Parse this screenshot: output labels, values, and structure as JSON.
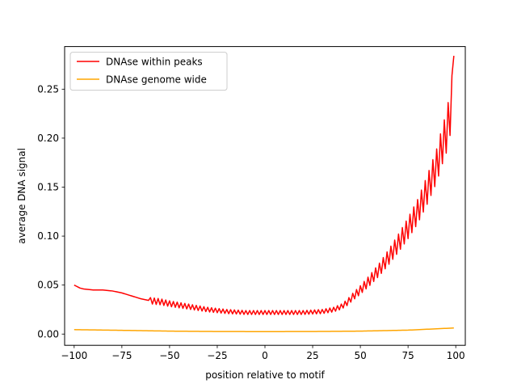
{
  "chart_data": {
    "type": "line",
    "title": "",
    "xlabel": "position relative to motif",
    "ylabel": "average DNA signal",
    "xlim": [
      -105,
      105
    ],
    "ylim": [
      -0.0115,
      0.2935
    ],
    "xticks": [
      -100,
      -75,
      -50,
      -25,
      0,
      25,
      50,
      75,
      100
    ],
    "yticks": [
      0.0,
      0.05,
      0.1,
      0.15,
      0.2,
      0.25
    ],
    "xtick_labels": [
      "−100",
      "−75",
      "−50",
      "−25",
      "0",
      "25",
      "50",
      "75",
      "100"
    ],
    "ytick_labels": [
      "0.00",
      "0.05",
      "0.10",
      "0.15",
      "0.20",
      "0.25"
    ],
    "grid": false,
    "legend_position": "top-left",
    "x_range": [
      -100,
      99
    ],
    "series": [
      {
        "name": "DNAse within peaks",
        "color": "#ff0000",
        "anchors": [
          [
            -100,
            0.05
          ],
          [
            -97,
            0.047
          ],
          [
            -95,
            0.046
          ],
          [
            -90,
            0.045
          ],
          [
            -85,
            0.045
          ],
          [
            -80,
            0.044
          ],
          [
            -75,
            0.042
          ],
          [
            -70,
            0.039
          ],
          [
            -65,
            0.036
          ],
          [
            -60,
            0.034
          ],
          [
            -55,
            0.033
          ],
          [
            -50,
            0.031
          ],
          [
            -40,
            0.028
          ],
          [
            -30,
            0.025
          ],
          [
            -20,
            0.023
          ],
          [
            -10,
            0.022
          ],
          [
            0,
            0.022
          ],
          [
            10,
            0.022
          ],
          [
            20,
            0.022
          ],
          [
            30,
            0.023
          ],
          [
            36,
            0.025
          ],
          [
            40,
            0.028
          ],
          [
            43,
            0.032
          ],
          [
            46,
            0.038
          ],
          [
            50,
            0.045
          ],
          [
            55,
            0.055
          ],
          [
            60,
            0.066
          ],
          [
            65,
            0.079
          ],
          [
            70,
            0.093
          ],
          [
            75,
            0.108
          ],
          [
            80,
            0.125
          ],
          [
            85,
            0.147
          ],
          [
            90,
            0.172
          ],
          [
            93,
            0.193
          ],
          [
            95,
            0.205
          ],
          [
            97,
            0.225
          ],
          [
            98,
            0.24
          ],
          [
            99,
            0.284
          ]
        ],
        "oscillation": {
          "start": -60,
          "amplitude_base": 0.002,
          "amplitude_scale": 0.1
        }
      },
      {
        "name": "DNAse genome wide",
        "color": "#ffa500",
        "anchors": [
          [
            -100,
            0.0045
          ],
          [
            -75,
            0.0038
          ],
          [
            -50,
            0.003
          ],
          [
            -25,
            0.0026
          ],
          [
            0,
            0.0025
          ],
          [
            25,
            0.0026
          ],
          [
            50,
            0.003
          ],
          [
            75,
            0.004
          ],
          [
            99,
            0.0062
          ]
        ]
      }
    ]
  }
}
